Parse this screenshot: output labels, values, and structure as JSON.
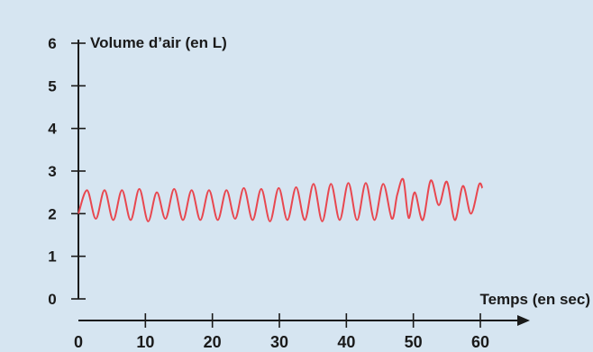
{
  "chart_data": {
    "type": "line",
    "title": "",
    "ylabel": "Volume d’air (en L)",
    "xlabel": "Temps (en sec)",
    "xlim": [
      0,
      60
    ],
    "ylim": [
      0,
      6
    ],
    "x_ticks": [
      "0",
      "10",
      "20",
      "30",
      "40",
      "50",
      "60"
    ],
    "y_ticks": [
      "0",
      "1",
      "2",
      "3",
      "4",
      "5",
      "6"
    ],
    "grid": false,
    "series": [
      {
        "name": "",
        "color": "#e8474f",
        "x": [
          0,
          1.3,
          2.6,
          3.9,
          5.2,
          6.5,
          7.8,
          9.1,
          10.4,
          11.7,
          13.0,
          14.3,
          15.6,
          16.9,
          18.2,
          19.5,
          20.8,
          22.1,
          23.4,
          24.7,
          26.0,
          27.3,
          28.6,
          29.9,
          31.2,
          32.5,
          33.8,
          35.1,
          36.4,
          37.7,
          39.0,
          40.3,
          41.6,
          42.9,
          44.2,
          45.5,
          46.8,
          47.6,
          48.5,
          49.3,
          50.2,
          51.4,
          52.6,
          53.8,
          55.0,
          56.2,
          57.4,
          58.6,
          59.8,
          60.3
        ],
        "y": [
          2.0,
          2.55,
          1.88,
          2.55,
          1.85,
          2.55,
          1.85,
          2.58,
          1.82,
          2.5,
          1.88,
          2.58,
          1.85,
          2.55,
          1.85,
          2.55,
          1.85,
          2.55,
          1.88,
          2.6,
          1.85,
          2.58,
          1.82,
          2.6,
          1.85,
          2.62,
          1.85,
          2.7,
          1.82,
          2.7,
          1.85,
          2.72,
          1.85,
          2.72,
          1.85,
          2.7,
          1.88,
          2.45,
          2.8,
          1.9,
          2.5,
          1.85,
          2.78,
          2.2,
          2.75,
          1.85,
          2.65,
          2.0,
          2.68,
          2.6
        ]
      }
    ]
  }
}
